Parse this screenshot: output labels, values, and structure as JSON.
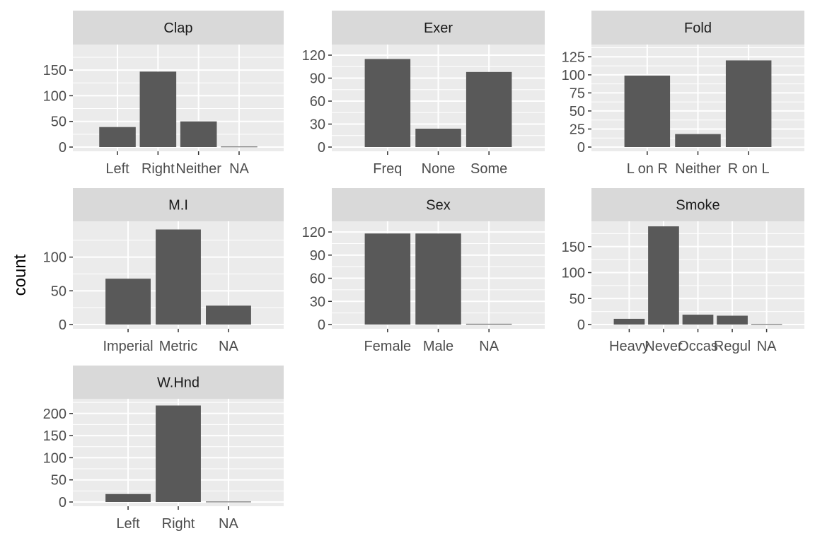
{
  "figure": {
    "ylabel": "count"
  },
  "chart_data": [
    {
      "type": "bar",
      "title": "Clap",
      "categories": [
        "Left",
        "Right",
        "Neither",
        "NA"
      ],
      "values": [
        39,
        147,
        50,
        1
      ],
      "ylim": [
        0,
        197
      ],
      "yticks": [
        0,
        50,
        100,
        150
      ]
    },
    {
      "type": "bar",
      "title": "Exer",
      "categories": [
        "Freq",
        "None",
        "Some"
      ],
      "values": [
        115,
        24,
        98
      ],
      "ylim": [
        0,
        132
      ],
      "yticks": [
        0,
        30,
        60,
        90,
        120
      ]
    },
    {
      "type": "bar",
      "title": "Fold",
      "categories": [
        "L on R",
        "Neither",
        "R on L"
      ],
      "values": [
        99,
        18,
        120
      ],
      "ylim": [
        0,
        140
      ],
      "yticks": [
        0,
        25,
        50,
        75,
        100,
        125
      ]
    },
    {
      "type": "bar",
      "title": "M.I",
      "categories": [
        "Imperial",
        "Metric",
        "NA"
      ],
      "values": [
        68,
        141,
        28
      ],
      "ylim": [
        0,
        151
      ],
      "yticks": [
        0,
        50,
        100
      ]
    },
    {
      "type": "bar",
      "title": "Sex",
      "categories": [
        "Female",
        "Male",
        "NA"
      ],
      "values": [
        118,
        118,
        1
      ],
      "ylim": [
        0,
        132
      ],
      "yticks": [
        0,
        30,
        60,
        90,
        120
      ]
    },
    {
      "type": "bar",
      "title": "Smoke",
      "categories": [
        "Heavy",
        "Never",
        "Occas",
        "Regul",
        "NA"
      ],
      "values": [
        11,
        189,
        19,
        17,
        1
      ],
      "ylim": [
        0,
        196
      ],
      "yticks": [
        0,
        50,
        100,
        150
      ]
    },
    {
      "type": "bar",
      "title": "W.Hnd",
      "categories": [
        "Left",
        "Right",
        "NA"
      ],
      "values": [
        18,
        218,
        1
      ],
      "ylim": [
        0,
        230
      ],
      "yticks": [
        0,
        50,
        100,
        150,
        200
      ]
    }
  ],
  "colors": {
    "panel_bg": "#ebebeb",
    "strip_bg": "#d9d9d9",
    "grid": "#ffffff",
    "bar": "#595959",
    "tick": "#333333"
  }
}
